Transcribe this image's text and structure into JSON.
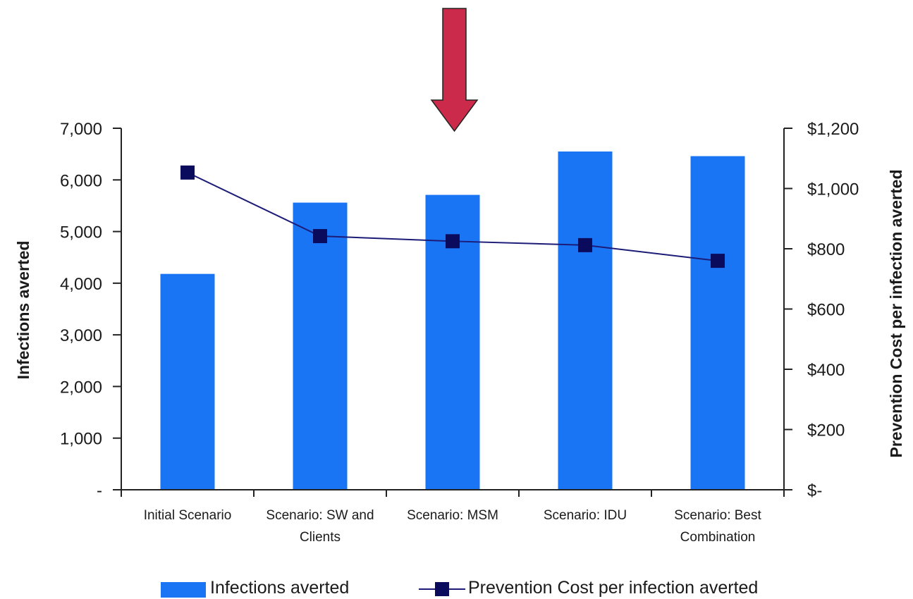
{
  "colors": {
    "bar": "#1a75f5",
    "line": "#1c1c78",
    "marker": "#0b0b5e",
    "arrow_fill": "#cc2a4a",
    "arrow_stroke": "#222222",
    "axis": "#222222"
  },
  "chart_data": {
    "type": "bar",
    "categories": [
      [
        "Initial Scenario"
      ],
      [
        "Scenario: SW and",
        "Clients"
      ],
      [
        "Scenario: MSM"
      ],
      [
        "Scenario: IDU"
      ],
      [
        "Scenario: Best",
        "Combination"
      ]
    ],
    "series": [
      {
        "name": "Infections averted",
        "type": "bar",
        "axis": "left",
        "values": [
          4180,
          5560,
          5710,
          6550,
          6460
        ]
      },
      {
        "name": "Prevention Cost per infection averted",
        "type": "line",
        "axis": "right",
        "values": [
          1053,
          842,
          825,
          812,
          760
        ]
      }
    ],
    "y_left": {
      "label": "Infections averted",
      "ylim": [
        0,
        7000
      ],
      "tick_values": [
        0,
        1000,
        2000,
        3000,
        4000,
        5000,
        6000,
        7000
      ],
      "tick_labels": [
        "-",
        "1,000",
        "2,000",
        "3,000",
        "4,000",
        "5,000",
        "6,000",
        "7,000"
      ]
    },
    "y_right": {
      "label": "Prevention Cost per infection averted",
      "ylim": [
        0,
        1200
      ],
      "tick_values": [
        0,
        200,
        400,
        600,
        800,
        1000,
        1200
      ],
      "tick_labels": [
        "$-",
        "$200",
        "$400",
        "$600",
        "$800",
        "$1,000",
        "$1,200"
      ]
    },
    "grid": false,
    "legend": "bottom",
    "annotation": "downward-arrow-over-msm"
  }
}
